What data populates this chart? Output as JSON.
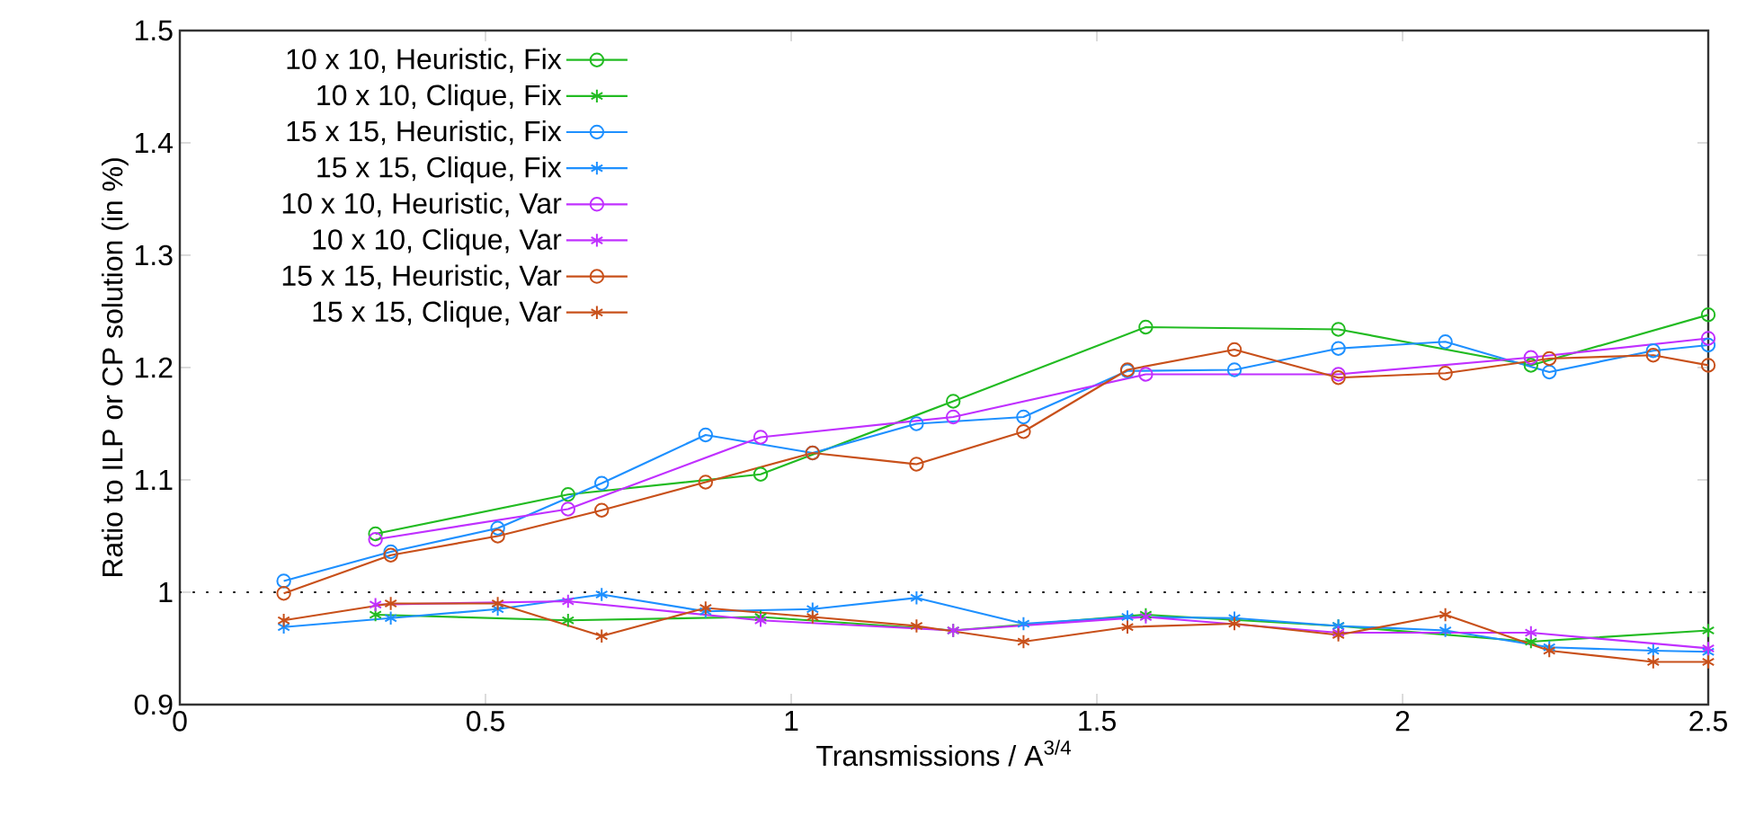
{
  "chart_data": {
    "type": "line",
    "xlabel": "Transmissions / A$^{3/4}$",
    "ylabel": "Ratio to ILP or CP solution (in %)",
    "xlim": [
      0,
      2.5
    ],
    "ylim": [
      0.9,
      1.5
    ],
    "xticks": [
      0,
      0.5,
      1,
      1.5,
      2,
      2.5
    ],
    "yticks": [
      0.9,
      1,
      1.1,
      1.2,
      1.3,
      1.4,
      1.5
    ],
    "grid": false,
    "legend": "top left",
    "line_style": "solid",
    "ref_lines": [
      {
        "axis": "y",
        "value": 1,
        "line_style": "dotted",
        "color": "#000000"
      }
    ],
    "series": [
      {
        "name": "10 x 10, Heuristic, Fix",
        "color": "#22bb22",
        "marker": "circle",
        "x": [
          0.32,
          0.635,
          0.95,
          1.265,
          1.58,
          1.895,
          2.21,
          2.5
        ],
        "values": [
          1.052,
          1.087,
          1.105,
          1.17,
          1.236,
          1.234,
          1.202,
          1.247
        ]
      },
      {
        "name": "10 x 10, Clique, Fix",
        "color": "#22bb22",
        "marker": "cross",
        "x": [
          0.32,
          0.635,
          0.95,
          1.265,
          1.58,
          1.895,
          2.21,
          2.5
        ],
        "values": [
          0.98,
          0.975,
          0.978,
          0.966,
          0.98,
          0.97,
          0.956,
          0.966
        ]
      },
      {
        "name": "15 x 15, Heuristic, Fix",
        "color": "#1e90ff",
        "marker": "circle",
        "x": [
          0.17,
          0.345,
          0.52,
          0.69,
          0.86,
          1.035,
          1.205,
          1.38,
          1.55,
          1.725,
          1.895,
          2.07,
          2.24,
          2.41,
          2.5
        ],
        "values": [
          1.01,
          1.036,
          1.057,
          1.097,
          1.14,
          1.124,
          1.15,
          1.156,
          1.197,
          1.198,
          1.217,
          1.223,
          1.196,
          1.215,
          1.22
        ]
      },
      {
        "name": "15 x 15, Clique, Fix",
        "color": "#1e90ff",
        "marker": "cross",
        "x": [
          0.17,
          0.345,
          0.52,
          0.69,
          0.86,
          1.035,
          1.205,
          1.38,
          1.55,
          1.725,
          1.895,
          2.07,
          2.24,
          2.41,
          2.5
        ],
        "values": [
          0.969,
          0.977,
          0.985,
          0.998,
          0.983,
          0.985,
          0.995,
          0.972,
          0.978,
          0.977,
          0.97,
          0.966,
          0.951,
          0.948,
          0.947
        ]
      },
      {
        "name": "10 x 10, Heuristic, Var",
        "color": "#c030ff",
        "marker": "circle",
        "x": [
          0.32,
          0.635,
          0.95,
          1.265,
          1.58,
          1.895,
          2.21,
          2.5
        ],
        "values": [
          1.047,
          1.074,
          1.138,
          1.156,
          1.194,
          1.194,
          1.209,
          1.226
        ]
      },
      {
        "name": "10 x 10, Clique, Var",
        "color": "#c030ff",
        "marker": "cross",
        "x": [
          0.32,
          0.635,
          0.95,
          1.265,
          1.58,
          1.895,
          2.21,
          2.5
        ],
        "values": [
          0.989,
          0.992,
          0.975,
          0.966,
          0.978,
          0.964,
          0.964,
          0.95
        ]
      },
      {
        "name": "15 x 15, Heuristic, Var",
        "color": "#c8501a",
        "marker": "circle",
        "x": [
          0.17,
          0.345,
          0.52,
          0.69,
          0.86,
          1.035,
          1.205,
          1.38,
          1.55,
          1.725,
          1.895,
          2.07,
          2.24,
          2.41,
          2.5
        ],
        "values": [
          0.999,
          1.033,
          1.05,
          1.073,
          1.098,
          1.124,
          1.114,
          1.143,
          1.198,
          1.216,
          1.191,
          1.195,
          1.208,
          1.211,
          1.202
        ]
      },
      {
        "name": "15 x 15, Clique, Var",
        "color": "#c8501a",
        "marker": "cross",
        "x": [
          0.17,
          0.345,
          0.52,
          0.69,
          0.86,
          1.035,
          1.205,
          1.38,
          1.55,
          1.725,
          1.895,
          2.07,
          2.24,
          2.41,
          2.5
        ],
        "values": [
          0.975,
          0.99,
          0.99,
          0.961,
          0.986,
          0.978,
          0.97,
          0.956,
          0.969,
          0.972,
          0.962,
          0.98,
          0.948,
          0.938,
          0.938
        ]
      }
    ]
  }
}
